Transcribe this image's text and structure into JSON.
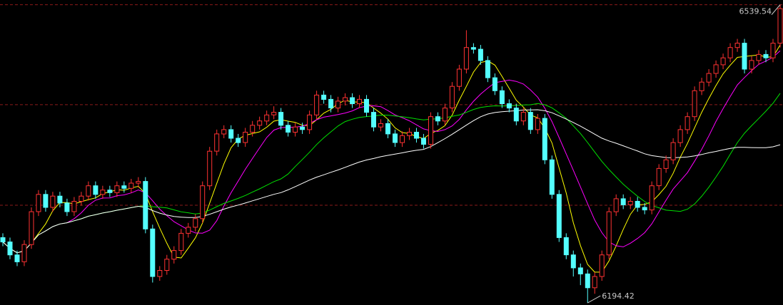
{
  "chart_data": {
    "type": "candlestick",
    "ylim": [
      6192,
      6545
    ],
    "grid": true,
    "gridlines": [
      6539.54,
      6423.9,
      6307.5
    ],
    "colors": {
      "background": "#000000",
      "up": "#ff3232",
      "down": "#54ffff",
      "grid": "#8b1a1a"
    },
    "moving_averages": [
      {
        "period": 5,
        "color": "#ffff00"
      },
      {
        "period": 10,
        "color": "#ff00ff"
      },
      {
        "period": 20,
        "color": "#00e000"
      },
      {
        "period": 40,
        "color": "#ffffff"
      }
    ],
    "max_label": "6539.54",
    "min_label": "6194.42",
    "max_value": 6539.54,
    "min_value": 6194.42,
    "open": [
      6270,
      6265,
      6250,
      6242,
      6262,
      6300,
      6320,
      6305,
      6318,
      6310,
      6300,
      6312,
      6318,
      6330,
      6320,
      6325,
      6322,
      6330,
      6327,
      6333,
      6335,
      6280,
      6225,
      6232,
      6245,
      6255,
      6275,
      6282,
      6292,
      6330,
      6370,
      6390,
      6395,
      6385,
      6380,
      6392,
      6400,
      6405,
      6412,
      6415,
      6400,
      6392,
      6398,
      6395,
      6412,
      6435,
      6430,
      6420,
      6428,
      6432,
      6425,
      6430,
      6415,
      6398,
      6402,
      6390,
      6380,
      6388,
      6392,
      6385,
      6378,
      6410,
      6405,
      6420,
      6445,
      6465,
      6490,
      6488,
      6475,
      6455,
      6440,
      6425,
      6420,
      6405,
      6415,
      6395,
      6408,
      6360,
      6320,
      6270,
      6250,
      6235,
      6228,
      6212,
      6225,
      6250,
      6300,
      6315,
      6308,
      6312,
      6305,
      6302,
      6330,
      6350,
      6360,
      6380,
      6395,
      6410,
      6440,
      6450,
      6460,
      6470,
      6478,
      6490,
      6495,
      6465,
      6475,
      6482,
      6478,
      6495
    ],
    "high": [
      6275,
      6270,
      6255,
      6267,
      6305,
      6325,
      6325,
      6323,
      6323,
      6315,
      6317,
      6323,
      6335,
      6335,
      6330,
      6330,
      6335,
      6335,
      6338,
      6340,
      6340,
      6285,
      6237,
      6250,
      6260,
      6280,
      6287,
      6297,
      6335,
      6375,
      6395,
      6400,
      6400,
      6390,
      6397,
      6405,
      6410,
      6417,
      6422,
      6420,
      6405,
      6403,
      6403,
      6417,
      6440,
      6440,
      6435,
      6433,
      6437,
      6437,
      6435,
      6435,
      6420,
      6407,
      6407,
      6395,
      6393,
      6397,
      6397,
      6390,
      6415,
      6415,
      6425,
      6450,
      6470,
      6510,
      6495,
      6493,
      6480,
      6460,
      6445,
      6430,
      6425,
      6420,
      6420,
      6413,
      6413,
      6365,
      6325,
      6275,
      6255,
      6240,
      6233,
      6230,
      6255,
      6305,
      6320,
      6320,
      6317,
      6317,
      6310,
      6335,
      6355,
      6365,
      6385,
      6400,
      6415,
      6445,
      6455,
      6465,
      6475,
      6483,
      6495,
      6500,
      6500,
      6480,
      6487,
      6487,
      6500,
      6539.54
    ],
    "low": [
      6260,
      6245,
      6237,
      6237,
      6257,
      6295,
      6300,
      6300,
      6305,
      6295,
      6295,
      6307,
      6313,
      6315,
      6315,
      6317,
      6317,
      6322,
      6322,
      6328,
      6275,
      6218,
      6220,
      6227,
      6240,
      6250,
      6270,
      6277,
      6287,
      6325,
      6365,
      6385,
      6380,
      6375,
      6375,
      6387,
      6395,
      6400,
      6407,
      6395,
      6387,
      6387,
      6390,
      6390,
      6407,
      6425,
      6415,
      6415,
      6423,
      6420,
      6420,
      6410,
      6393,
      6393,
      6385,
      6375,
      6375,
      6383,
      6380,
      6373,
      6373,
      6400,
      6400,
      6415,
      6440,
      6460,
      6483,
      6470,
      6450,
      6435,
      6420,
      6415,
      6400,
      6400,
      6390,
      6390,
      6355,
      6315,
      6265,
      6245,
      6225,
      6215,
      6194.42,
      6205,
      6220,
      6245,
      6295,
      6303,
      6303,
      6300,
      6297,
      6297,
      6325,
      6345,
      6355,
      6375,
      6390,
      6405,
      6435,
      6445,
      6455,
      6465,
      6473,
      6485,
      6460,
      6460,
      6470,
      6473,
      6473,
      6490
    ],
    "close": [
      6265,
      6250,
      6242,
      6262,
      6300,
      6320,
      6305,
      6318,
      6310,
      6300,
      6312,
      6318,
      6330,
      6320,
      6325,
      6322,
      6330,
      6327,
      6333,
      6335,
      6280,
      6225,
      6232,
      6245,
      6255,
      6275,
      6282,
      6292,
      6330,
      6370,
      6390,
      6395,
      6385,
      6380,
      6392,
      6400,
      6405,
      6412,
      6415,
      6400,
      6392,
      6398,
      6395,
      6412,
      6435,
      6430,
      6420,
      6428,
      6432,
      6425,
      6430,
      6415,
      6398,
      6402,
      6390,
      6380,
      6388,
      6392,
      6385,
      6378,
      6410,
      6405,
      6420,
      6445,
      6465,
      6490,
      6488,
      6475,
      6455,
      6440,
      6425,
      6420,
      6405,
      6415,
      6395,
      6408,
      6360,
      6320,
      6270,
      6250,
      6235,
      6228,
      6212,
      6225,
      6250,
      6300,
      6315,
      6308,
      6312,
      6305,
      6302,
      6330,
      6350,
      6360,
      6380,
      6395,
      6410,
      6440,
      6450,
      6460,
      6470,
      6478,
      6490,
      6495,
      6465,
      6475,
      6482,
      6478,
      6495,
      6535
    ]
  }
}
